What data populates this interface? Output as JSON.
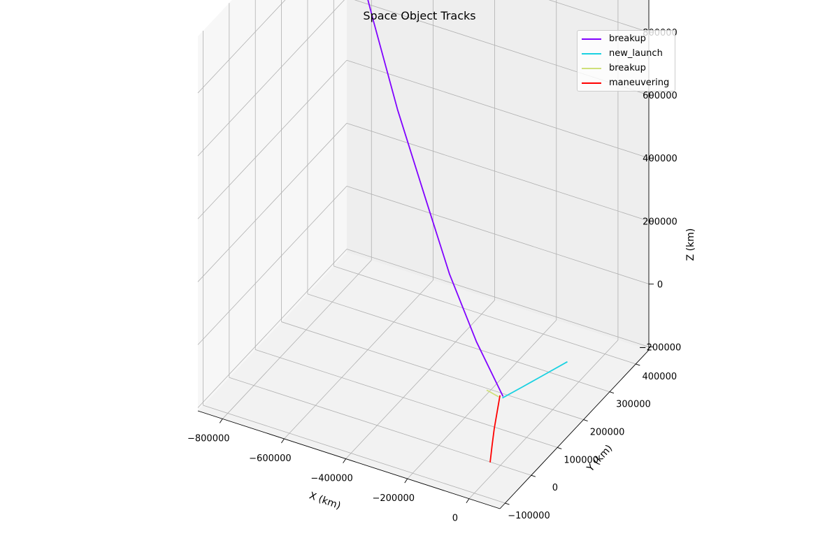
{
  "chart_data": {
    "type": "line",
    "title": "Space Object Tracks",
    "xlabel": "X (km)",
    "ylabel": "Y (km)",
    "zlabel": "Z (km)",
    "xlim": [
      -880000,
      100000
    ],
    "ylim": [
      -120000,
      450000
    ],
    "zlim": [
      -210000,
      980000
    ],
    "x_ticks": [
      -800000,
      -600000,
      -400000,
      -200000,
      0
    ],
    "x_tick_labels": [
      "−800000",
      "−600000",
      "−400000",
      "−200000",
      "0"
    ],
    "y_ticks": [
      -100000,
      0,
      100000,
      200000,
      300000,
      400000
    ],
    "y_tick_labels": [
      "−100000",
      "0",
      "100000",
      "200000",
      "300000",
      "400000"
    ],
    "z_ticks": [
      -200000,
      0,
      200000,
      400000,
      600000,
      800000
    ],
    "z_tick_labels": [
      "−200000",
      "0",
      "200000",
      "400000",
      "600000",
      "800000"
    ],
    "grid": true,
    "legend_position": "top-right",
    "series": [
      {
        "name": "breakup",
        "color": "#8000ff",
        "x": [
          0,
          -120000,
          -250000,
          -380000,
          -520000,
          -650000,
          -800000
        ],
        "y": [
          10000,
          50000,
          100000,
          160000,
          220000,
          280000,
          350000
        ],
        "z": [
          0,
          100000,
          230000,
          380000,
          560000,
          750000,
          980000
        ]
      },
      {
        "name": "new_launch",
        "color": "#1ad1e1",
        "x": [
          2000,
          30000,
          60000,
          90000
        ],
        "y": [
          5000,
          50000,
          100000,
          150000
        ],
        "z": [
          0,
          5000,
          10000,
          15000
        ]
      },
      {
        "name": "breakup",
        "color": "#cfe07a",
        "x": [
          -10000,
          -30000,
          -50000,
          -60000
        ],
        "y": [
          5000,
          10000,
          15000,
          18000
        ],
        "z": [
          0,
          -2000,
          -4000,
          -6000
        ]
      },
      {
        "name": "maneuvering",
        "color": "#ff0000",
        "x": [
          -10000,
          -15000,
          -20000,
          -23000,
          -25000
        ],
        "y": [
          10000,
          5000,
          0,
          -5000,
          -10000
        ],
        "z": [
          0,
          -50000,
          -100000,
          -150000,
          -200000
        ]
      }
    ]
  }
}
